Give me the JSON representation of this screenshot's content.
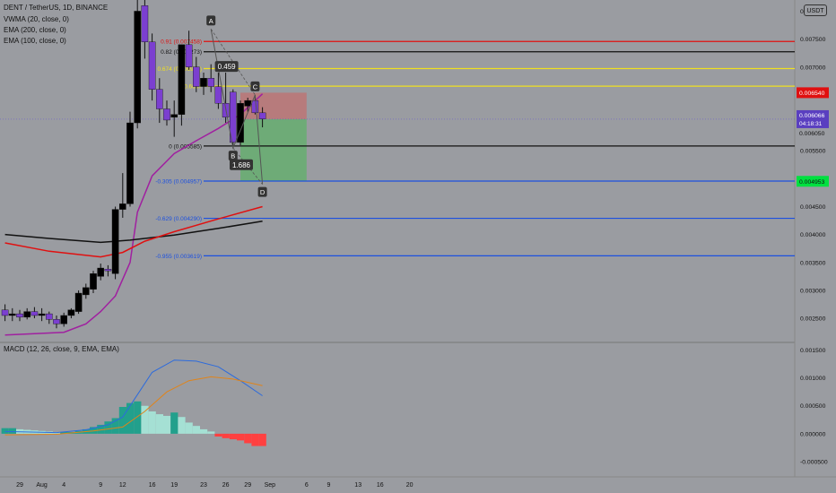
{
  "header": {
    "symbol": "DENT / TetherUS, 1D, BINANCE",
    "indicators": [
      "VWMA (20, close, 0)",
      "EMA (200, close, 0)",
      "EMA (100, close, 0)"
    ],
    "macd_label": "MACD (12, 26, close, 9, EMA, EMA)",
    "currency_button": "USDT"
  },
  "colors": {
    "background": "#9a9ca1",
    "bull": "#000000",
    "bear": "#7b3fd0",
    "vwma": "#a020a0",
    "ema200": "#111111",
    "ema100": "#e01010",
    "fib_red": "#e01010",
    "fib_black": "#111111",
    "fib_yellow": "#f0e020",
    "fib_blue": "#1c50e0",
    "target_green": "#00e040",
    "stop_red": "#e01010",
    "macd_line": "#2d6bdc",
    "signal_line": "#e0841a",
    "hist_teal_strong": "#22a08c",
    "hist_teal_light": "#a5e0d4",
    "hist_red": "#ff4040",
    "hist_red_light": "#ff9090",
    "position_profit": "#5fb06a",
    "position_loss": "#c07070",
    "label_bg": "#333333"
  },
  "chart_data": {
    "type": "candlestick",
    "symbol": "DENT / TetherUS",
    "interval": "1D",
    "exchange": "BINANCE",
    "price_ylim": [
      0.0021,
      0.0082
    ],
    "price_ticks": [
      "0.008000",
      "0.007500",
      "0.007000",
      "0.006540",
      "0.006066",
      "0.006050",
      "0.005500",
      "0.004953",
      "0.004500",
      "0.004000",
      "0.003500",
      "0.003000",
      "0.002500"
    ],
    "current_price": "0.006066",
    "countdown": "04:18:31",
    "x_dates": [
      "2021-07-29",
      "2021-07-30",
      "2021-07-31",
      "2021-08-01",
      "2021-08-02",
      "2021-08-03",
      "2021-08-04",
      "2021-08-05",
      "2021-08-06",
      "2021-08-07",
      "2021-08-08",
      "2021-08-09",
      "2021-08-10",
      "2021-08-11",
      "2021-08-12",
      "2021-08-13",
      "2021-08-14",
      "2021-08-15",
      "2021-08-16",
      "2021-08-17",
      "2021-08-18",
      "2021-08-19",
      "2021-08-20",
      "2021-08-21",
      "2021-08-22",
      "2021-08-23",
      "2021-08-24",
      "2021-08-25",
      "2021-08-26",
      "2021-08-27",
      "2021-08-28",
      "2021-08-29",
      "2021-08-30",
      "2021-08-31",
      "2021-09-01",
      "2021-09-02",
      "2021-09-03",
      "2021-09-04",
      "2021-09-05",
      "2021-09-06",
      "2021-09-07",
      "2021-09-08",
      "2021-09-09",
      "2021-09-10",
      "2021-09-11",
      "2021-09-12",
      "2021-09-13",
      "2021-09-14",
      "2021-09-15",
      "2021-09-16",
      "2021-09-17",
      "2021-09-18",
      "2021-09-19",
      "2021-09-20",
      "2021-09-21",
      "2021-09-22",
      "2021-09-23"
    ],
    "x_tick_labels": [
      {
        "date": "2021-07-29",
        "label": "29"
      },
      {
        "date": "2021-08-01",
        "label": "Aug"
      },
      {
        "date": "2021-08-04",
        "label": "4"
      },
      {
        "date": "2021-08-09",
        "label": "9"
      },
      {
        "date": "2021-08-12",
        "label": "12"
      },
      {
        "date": "2021-08-16",
        "label": "16"
      },
      {
        "date": "2021-08-19",
        "label": "19"
      },
      {
        "date": "2021-08-23",
        "label": "23"
      },
      {
        "date": "2021-08-26",
        "label": "26"
      },
      {
        "date": "2021-08-29",
        "label": "29"
      },
      {
        "date": "2021-09-01",
        "label": "Sep"
      },
      {
        "date": "2021-09-06",
        "label": "6"
      },
      {
        "date": "2021-09-09",
        "label": "9"
      },
      {
        "date": "2021-09-13",
        "label": "13"
      },
      {
        "date": "2021-09-16",
        "label": "16"
      },
      {
        "date": "2021-09-20",
        "label": "20"
      }
    ],
    "candles": [
      {
        "date": "2021-07-27",
        "o": 0.00265,
        "h": 0.00275,
        "l": 0.00245,
        "c": 0.00255
      },
      {
        "date": "2021-07-28",
        "o": 0.00255,
        "h": 0.00268,
        "l": 0.00245,
        "c": 0.00258
      },
      {
        "date": "2021-07-29",
        "o": 0.00258,
        "h": 0.00265,
        "l": 0.00245,
        "c": 0.00252
      },
      {
        "date": "2021-07-30",
        "o": 0.00252,
        "h": 0.00268,
        "l": 0.00248,
        "c": 0.00262
      },
      {
        "date": "2021-07-31",
        "o": 0.00262,
        "h": 0.0027,
        "l": 0.0025,
        "c": 0.00255
      },
      {
        "date": "2021-08-01",
        "o": 0.00255,
        "h": 0.00268,
        "l": 0.00245,
        "c": 0.00258
      },
      {
        "date": "2021-08-02",
        "o": 0.00258,
        "h": 0.00262,
        "l": 0.0024,
        "c": 0.00248
      },
      {
        "date": "2021-08-03",
        "o": 0.00248,
        "h": 0.00255,
        "l": 0.00232,
        "c": 0.0024
      },
      {
        "date": "2021-08-04",
        "o": 0.0024,
        "h": 0.0026,
        "l": 0.00235,
        "c": 0.00255
      },
      {
        "date": "2021-08-05",
        "o": 0.00255,
        "h": 0.00268,
        "l": 0.0025,
        "c": 0.00265
      },
      {
        "date": "2021-08-06",
        "o": 0.00262,
        "h": 0.003,
        "l": 0.00258,
        "c": 0.00295
      },
      {
        "date": "2021-08-07",
        "o": 0.00292,
        "h": 0.00312,
        "l": 0.00285,
        "c": 0.00305
      },
      {
        "date": "2021-08-08",
        "o": 0.00302,
        "h": 0.00335,
        "l": 0.00295,
        "c": 0.0033
      },
      {
        "date": "2021-08-09",
        "o": 0.00325,
        "h": 0.00348,
        "l": 0.00318,
        "c": 0.0034
      },
      {
        "date": "2021-08-10",
        "o": 0.00338,
        "h": 0.00345,
        "l": 0.00325,
        "c": 0.00335
      },
      {
        "date": "2021-08-11",
        "o": 0.0033,
        "h": 0.0045,
        "l": 0.0032,
        "c": 0.00445
      },
      {
        "date": "2021-08-12",
        "o": 0.00445,
        "h": 0.0051,
        "l": 0.0043,
        "c": 0.00455
      },
      {
        "date": "2021-08-13",
        "o": 0.00455,
        "h": 0.0062,
        "l": 0.0045,
        "c": 0.006
      },
      {
        "date": "2021-08-14",
        "o": 0.006,
        "h": 0.0083,
        "l": 0.0059,
        "c": 0.008
      },
      {
        "date": "2021-08-15",
        "o": 0.0081,
        "h": 0.0085,
        "l": 0.00715,
        "c": 0.00745
      },
      {
        "date": "2021-08-16",
        "o": 0.00745,
        "h": 0.0076,
        "l": 0.0064,
        "c": 0.0066
      },
      {
        "date": "2021-08-17",
        "o": 0.0066,
        "h": 0.0068,
        "l": 0.006,
        "c": 0.00625
      },
      {
        "date": "2021-08-18",
        "o": 0.00625,
        "h": 0.0064,
        "l": 0.00595,
        "c": 0.00605
      },
      {
        "date": "2021-08-19",
        "o": 0.0061,
        "h": 0.0064,
        "l": 0.00575,
        "c": 0.00615
      },
      {
        "date": "2021-08-20",
        "o": 0.00615,
        "h": 0.0074,
        "l": 0.00595,
        "c": 0.0074
      },
      {
        "date": "2021-08-21",
        "o": 0.0074,
        "h": 0.00765,
        "l": 0.00695,
        "c": 0.007
      },
      {
        "date": "2021-08-22",
        "o": 0.007,
        "h": 0.00718,
        "l": 0.00655,
        "c": 0.00665
      },
      {
        "date": "2021-08-23",
        "o": 0.00665,
        "h": 0.0069,
        "l": 0.0065,
        "c": 0.0068
      },
      {
        "date": "2021-08-24",
        "o": 0.0068,
        "h": 0.00705,
        "l": 0.00655,
        "c": 0.00665
      },
      {
        "date": "2021-08-25",
        "o": 0.00665,
        "h": 0.0069,
        "l": 0.00625,
        "c": 0.00635
      },
      {
        "date": "2021-08-26",
        "o": 0.00635,
        "h": 0.0069,
        "l": 0.006,
        "c": 0.0061
      },
      {
        "date": "2021-08-27",
        "o": 0.00655,
        "h": 0.0066,
        "l": 0.00555,
        "c": 0.00565
      },
      {
        "date": "2021-08-28",
        "o": 0.00565,
        "h": 0.0064,
        "l": 0.0056,
        "c": 0.00635
      },
      {
        "date": "2021-08-29",
        "o": 0.0063,
        "h": 0.00645,
        "l": 0.0062,
        "c": 0.0064
      },
      {
        "date": "2021-08-30",
        "o": 0.0064,
        "h": 0.0065,
        "l": 0.00615,
        "c": 0.00618
      },
      {
        "date": "2021-08-31",
        "o": 0.00618,
        "h": 0.00628,
        "l": 0.00592,
        "c": 0.00607
      }
    ],
    "series": [
      {
        "name": "VWMA (20, close, 0)",
        "color": "#a020a0",
        "points": [
          [
            "2021-07-27",
            0.0022
          ],
          [
            "2021-08-04",
            0.00225
          ],
          [
            "2021-08-07",
            0.0024
          ],
          [
            "2021-08-09",
            0.00262
          ],
          [
            "2021-08-11",
            0.0029
          ],
          [
            "2021-08-13",
            0.0035
          ],
          [
            "2021-08-14",
            0.0044
          ],
          [
            "2021-08-16",
            0.00505
          ],
          [
            "2021-08-19",
            0.00545
          ],
          [
            "2021-08-22",
            0.00568
          ],
          [
            "2021-08-25",
            0.0059
          ],
          [
            "2021-08-28",
            0.00615
          ],
          [
            "2021-08-31",
            0.00652
          ]
        ]
      },
      {
        "name": "EMA (200, close, 0)",
        "color": "#111111",
        "points": [
          [
            "2021-07-27",
            0.004
          ],
          [
            "2021-08-02",
            0.00393
          ],
          [
            "2021-08-09",
            0.00386
          ],
          [
            "2021-08-13",
            0.0039
          ],
          [
            "2021-08-19",
            0.00399
          ],
          [
            "2021-08-25",
            0.00411
          ],
          [
            "2021-08-31",
            0.00424
          ]
        ]
      },
      {
        "name": "EMA (100, close, 0)",
        "color": "#e01010",
        "points": [
          [
            "2021-07-27",
            0.00385
          ],
          [
            "2021-08-02",
            0.0037
          ],
          [
            "2021-08-09",
            0.0036
          ],
          [
            "2021-08-12",
            0.00368
          ],
          [
            "2021-08-15",
            0.00388
          ],
          [
            "2021-08-19",
            0.00405
          ],
          [
            "2021-08-25",
            0.00428
          ],
          [
            "2021-08-31",
            0.0045
          ]
        ]
      }
    ],
    "fib_levels": [
      {
        "label": "0.91 (0.007458)",
        "price": 0.007458,
        "color": "#e01010",
        "text_color": "#e01010"
      },
      {
        "label": "0.82 (0.007273)",
        "price": 0.007273,
        "color": "#111111",
        "text_color": "#111111"
      },
      {
        "label": "0.674 (0.006972)",
        "price": 0.006972,
        "color": "#f0e020",
        "text_color": "#f0e020"
      },
      {
        "label": "0.6667",
        "price": 0.006657,
        "color": "#f0e020",
        "text_color": "#f0e020"
      },
      {
        "label": "0 (0.005585)",
        "price": 0.005585,
        "color": "#111111",
        "text_color": "#111111"
      },
      {
        "label": "-0.305 (0.004957)",
        "price": 0.004957,
        "color": "#1c50e0",
        "text_color": "#1c50e0"
      },
      {
        "label": "-0.629 (0.004290)",
        "price": 0.00429,
        "color": "#1c50e0",
        "text_color": "#1c50e0"
      },
      {
        "label": "-0.955 (0.003619)",
        "price": 0.003619,
        "color": "#1c50e0",
        "text_color": "#1c50e0"
      }
    ],
    "pattern": {
      "points": [
        {
          "label": "A",
          "date": "2021-08-24",
          "price": 0.00768
        },
        {
          "label": "B",
          "date": "2021-08-27",
          "price": 0.00555
        },
        {
          "label": "C",
          "date": "2021-08-30",
          "price": 0.0065
        },
        {
          "label": "D",
          "date": "2021-08-31",
          "price": 0.0049
        }
      ],
      "ratios": [
        {
          "label": "0.459",
          "date": "2021-08-26",
          "price": 0.00701
        },
        {
          "label": "1.686",
          "date": "2021-08-28",
          "price": 0.00525
        }
      ]
    },
    "position": {
      "entry": 0.006066,
      "stop": 0.00654,
      "target": 0.004953,
      "start_date": "2021-08-28",
      "end_date": "2021-09-06"
    },
    "price_tags": [
      {
        "label": "0.006540",
        "price": 0.00654,
        "bg": "#e01010",
        "fg": "#ffffff"
      },
      {
        "label": "0.004953",
        "price": 0.004953,
        "bg": "#00e040",
        "fg": "#111111"
      }
    ],
    "macd": {
      "label": "MACD (12, 26, close, 9, EMA, EMA)",
      "ylim": [
        -0.00058,
        0.00162
      ],
      "ticks": [
        "0.001500",
        "0.001000",
        "0.000500",
        "0.000000",
        "-0.000500"
      ],
      "macd_line": [
        [
          "2021-07-27",
          4e-05
        ],
        [
          "2021-08-03",
          2e-05
        ],
        [
          "2021-08-07",
          7e-05
        ],
        [
          "2021-08-10",
          0.00016
        ],
        [
          "2021-08-12",
          0.0003
        ],
        [
          "2021-08-14",
          0.0007
        ],
        [
          "2021-08-16",
          0.0011
        ],
        [
          "2021-08-19",
          0.00132
        ],
        [
          "2021-08-22",
          0.0013
        ],
        [
          "2021-08-25",
          0.0012
        ],
        [
          "2021-08-28",
          0.00095
        ],
        [
          "2021-08-31",
          0.00068
        ]
      ],
      "signal_line": [
        [
          "2021-07-27",
          -2e-05
        ],
        [
          "2021-08-03",
          -1e-05
        ],
        [
          "2021-08-08",
          5e-05
        ],
        [
          "2021-08-12",
          0.00012
        ],
        [
          "2021-08-15",
          0.0004
        ],
        [
          "2021-08-18",
          0.00075
        ],
        [
          "2021-08-21",
          0.00095
        ],
        [
          "2021-08-24",
          0.00102
        ],
        [
          "2021-08-27",
          0.00098
        ],
        [
          "2021-08-31",
          0.00086
        ]
      ],
      "histogram": [
        0.0001,
        0.0001,
        8e-05,
        7e-05,
        6e-05,
        5e-05,
        4e-05,
        3e-05,
        3e-05,
        3e-05,
        5e-05,
        8e-05,
        0.00012,
        0.00016,
        0.00022,
        0.00028,
        0.00048,
        0.00055,
        0.00058,
        0.0005,
        0.0004,
        0.00035,
        0.00032,
        0.00038,
        0.0003,
        0.0002,
        0.00014,
        8e-05,
        4e-05,
        -5e-05,
        -8e-05,
        -0.0001,
        -0.00012,
        -0.00017,
        -0.00022,
        -0.00022
      ]
    }
  }
}
